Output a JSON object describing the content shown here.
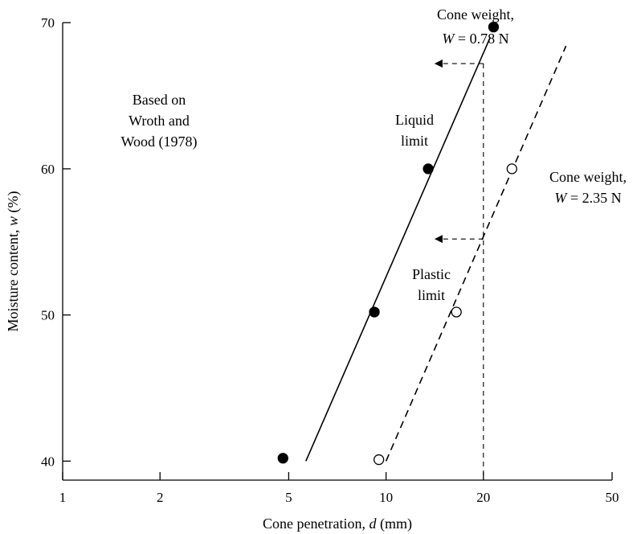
{
  "chart_data": {
    "type": "scatter",
    "xscale": "log",
    "xlim": [
      1,
      50
    ],
    "ylim": [
      38.7,
      71
    ],
    "x_ticks": [
      {
        "value": 1,
        "label": "1"
      },
      {
        "value": 2,
        "label": "2"
      },
      {
        "value": 5,
        "label": "5"
      },
      {
        "value": 10,
        "label": "10"
      },
      {
        "value": 20,
        "label": "20"
      },
      {
        "value": 50,
        "label": "50"
      }
    ],
    "y_ticks": [
      {
        "value": 40,
        "label": "40"
      },
      {
        "value": 50,
        "label": "50"
      },
      {
        "value": 60,
        "label": "60"
      },
      {
        "value": 70,
        "label": "70"
      }
    ],
    "xlabel": {
      "pre": "Cone penetration, ",
      "var": "d",
      "post": " (mm)"
    },
    "ylabel": {
      "pre": "Moisture content, ",
      "var": "w",
      "post": " (%)"
    },
    "grid": false,
    "series": [
      {
        "label_lines": [
          "Cone weight,",
          "W = 0.78 N"
        ],
        "marker": "filled-circle",
        "line_style": "solid",
        "points": [
          {
            "x": 4.8,
            "y": 40.2
          },
          {
            "x": 9.2,
            "y": 50.2
          },
          {
            "x": 13.5,
            "y": 60.0
          },
          {
            "x": 21.5,
            "y": 69.7
          }
        ],
        "fit_line": [
          {
            "x": 5.65,
            "y": 40.0
          },
          {
            "x": 21.0,
            "y": 69.0
          }
        ]
      },
      {
        "label_lines": [
          "Cone weight,",
          "W = 2.35 N"
        ],
        "marker": "open-circle",
        "line_style": "dashed",
        "points": [
          {
            "x": 9.5,
            "y": 40.1
          },
          {
            "x": 16.5,
            "y": 50.2
          },
          {
            "x": 24.5,
            "y": 60.0
          }
        ],
        "fit_line": [
          {
            "x": 10.0,
            "y": 40.0
          },
          {
            "x": 36.0,
            "y": 68.4
          }
        ]
      }
    ],
    "guides": {
      "vertical_x": 20,
      "vertical_from_y": 38.7,
      "vertical_to_y": 67.2,
      "liquid_limit_y": 67.2,
      "plastic_limit_y": 55.2,
      "arrow_to_x": 14.2
    },
    "annotations": {
      "source": [
        "Based on",
        "Wroth and",
        "Wood (1978)"
      ],
      "liquid_limit": [
        "Liquid",
        "limit"
      ],
      "plastic_limit": [
        "Plastic",
        "limit"
      ]
    }
  }
}
